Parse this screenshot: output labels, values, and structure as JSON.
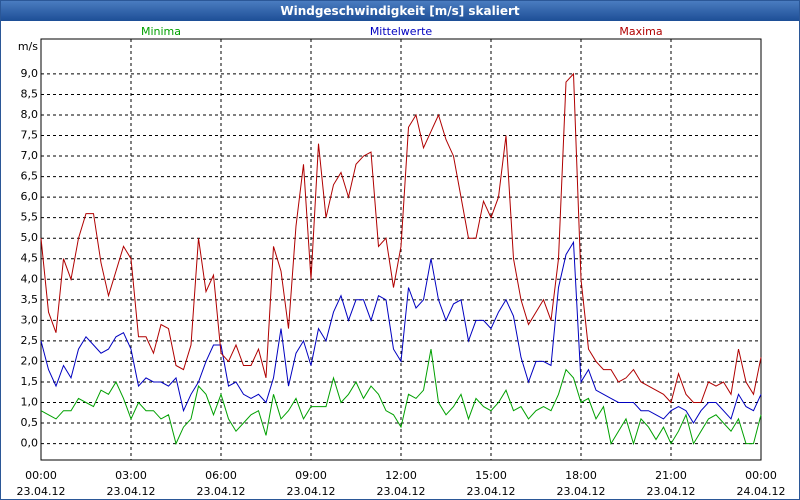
{
  "chart_data": {
    "type": "line",
    "title": "Windgeschwindigkeit [m/s] skaliert",
    "ylabel": "m/s",
    "x": [
      0,
      0.25,
      0.5,
      0.75,
      1,
      1.25,
      1.5,
      1.75,
      2,
      2.25,
      2.5,
      2.75,
      3,
      3.25,
      3.5,
      3.75,
      4,
      4.25,
      4.5,
      4.75,
      5,
      5.25,
      5.5,
      5.75,
      6,
      6.25,
      6.5,
      6.75,
      7,
      7.25,
      7.5,
      7.75,
      8,
      8.25,
      8.5,
      8.75,
      9,
      9.25,
      9.5,
      9.75,
      10,
      10.25,
      10.5,
      10.75,
      11,
      11.25,
      11.5,
      11.75,
      12,
      12.25,
      12.5,
      12.75,
      13,
      13.25,
      13.5,
      13.75,
      14,
      14.25,
      14.5,
      14.75,
      15,
      15.25,
      15.5,
      15.75,
      16,
      16.25,
      16.5,
      16.75,
      17,
      17.25,
      17.5,
      17.75,
      18,
      18.25,
      18.5,
      18.75,
      19,
      19.25,
      19.5,
      19.75,
      20,
      20.25,
      20.5,
      20.75,
      21,
      21.25,
      21.5,
      21.75,
      22,
      22.25,
      22.5,
      22.75,
      23,
      23.25,
      23.5,
      23.75,
      24
    ],
    "series": [
      {
        "name": "Minima",
        "color": "#00a000",
        "values": [
          0.8,
          0.7,
          0.6,
          0.8,
          0.8,
          1.1,
          1.0,
          0.9,
          1.3,
          1.2,
          1.5,
          1.1,
          0.6,
          1.0,
          0.8,
          0.8,
          0.6,
          0.7,
          0.0,
          0.4,
          0.6,
          1.4,
          1.2,
          0.7,
          1.2,
          0.6,
          0.3,
          0.5,
          0.7,
          0.8,
          0.2,
          1.2,
          0.6,
          0.8,
          1.1,
          0.6,
          0.9,
          0.9,
          0.9,
          1.6,
          1.0,
          1.2,
          1.5,
          1.1,
          1.4,
          1.2,
          0.8,
          0.7,
          0.4,
          1.2,
          1.1,
          1.3,
          2.3,
          1.0,
          0.7,
          0.9,
          1.2,
          0.6,
          1.1,
          0.9,
          0.8,
          1.0,
          1.3,
          0.8,
          0.9,
          0.6,
          0.8,
          0.9,
          0.8,
          1.2,
          1.8,
          1.6,
          1.0,
          1.1,
          0.6,
          0.9,
          0.0,
          0.3,
          0.6,
          0.0,
          0.6,
          0.4,
          0.1,
          0.4,
          0.0,
          0.3,
          0.7,
          0.0,
          0.3,
          0.6,
          0.7,
          0.5,
          0.3,
          0.6,
          0.0,
          0.0,
          0.7
        ]
      },
      {
        "name": "Mittelwerte",
        "color": "#0000c0",
        "values": [
          2.5,
          1.8,
          1.4,
          1.9,
          1.6,
          2.3,
          2.6,
          2.4,
          2.2,
          2.3,
          2.6,
          2.7,
          2.3,
          1.4,
          1.6,
          1.5,
          1.5,
          1.4,
          1.6,
          0.8,
          1.2,
          1.5,
          2.0,
          2.4,
          2.4,
          1.4,
          1.5,
          1.2,
          1.1,
          1.2,
          1.0,
          1.6,
          2.8,
          1.4,
          2.2,
          2.5,
          1.9,
          2.8,
          2.5,
          3.2,
          3.6,
          3.0,
          3.5,
          3.5,
          3.0,
          3.6,
          3.5,
          2.3,
          2.0,
          3.8,
          3.3,
          3.5,
          4.5,
          3.5,
          3.0,
          3.4,
          3.5,
          2.5,
          3.0,
          3.0,
          2.8,
          3.2,
          3.5,
          3.1,
          2.1,
          1.5,
          2.0,
          2.0,
          1.9,
          3.8,
          4.6,
          4.9,
          1.5,
          1.8,
          1.3,
          1.2,
          1.1,
          1.0,
          1.0,
          1.0,
          0.8,
          0.8,
          0.7,
          0.6,
          0.8,
          0.9,
          0.8,
          0.5,
          0.8,
          1.0,
          1.0,
          0.8,
          0.6,
          1.2,
          0.9,
          0.8,
          1.2
        ]
      },
      {
        "name": "Maxima",
        "color": "#b00000",
        "values": [
          5.0,
          3.2,
          2.7,
          4.5,
          4.0,
          5.0,
          5.6,
          5.6,
          4.4,
          3.6,
          4.2,
          4.8,
          4.5,
          2.6,
          2.6,
          2.2,
          2.9,
          2.8,
          1.9,
          1.8,
          2.4,
          5.0,
          3.7,
          4.1,
          2.2,
          2.0,
          2.4,
          1.9,
          1.9,
          2.3,
          1.6,
          4.8,
          4.2,
          2.8,
          5.3,
          6.8,
          4.0,
          7.3,
          5.5,
          6.3,
          6.6,
          6.0,
          6.8,
          7.0,
          7.1,
          4.8,
          5.0,
          3.8,
          4.8,
          7.7,
          8.0,
          7.2,
          7.6,
          8.0,
          7.4,
          7.0,
          6.0,
          5.0,
          5.0,
          5.9,
          5.5,
          6.0,
          7.5,
          4.5,
          3.5,
          2.9,
          3.2,
          3.5,
          3.0,
          4.5,
          8.8,
          9.0,
          4.0,
          2.3,
          2.0,
          1.8,
          1.8,
          1.5,
          1.6,
          1.8,
          1.5,
          1.4,
          1.3,
          1.2,
          1.0,
          1.7,
          1.2,
          1.0,
          1.0,
          1.5,
          1.4,
          1.5,
          1.2,
          2.3,
          1.5,
          1.2,
          2.1
        ]
      }
    ],
    "xlim": [
      0,
      24
    ],
    "xticks": [
      {
        "value": 0,
        "label": "00:00"
      },
      {
        "value": 3,
        "label": "03:00"
      },
      {
        "value": 6,
        "label": "06:00"
      },
      {
        "value": 9,
        "label": "09:00"
      },
      {
        "value": 12,
        "label": "12:00"
      },
      {
        "value": 15,
        "label": "15:00"
      },
      {
        "value": 18,
        "label": "18:00"
      },
      {
        "value": 21,
        "label": "21:00"
      },
      {
        "value": 24,
        "label": "00:00"
      }
    ],
    "xtick_dates": [
      "23.04.12",
      "23.04.12",
      "23.04.12",
      "23.04.12",
      "23.04.12",
      "23.04.12",
      "23.04.12",
      "23.04.12",
      "24.04.12"
    ],
    "ylim": [
      -0.4,
      9.85
    ],
    "yticks": [
      {
        "value": 0,
        "label": "0,0"
      },
      {
        "value": 0.5,
        "label": "0,5"
      },
      {
        "value": 1,
        "label": "1,0"
      },
      {
        "value": 1.5,
        "label": "1,5"
      },
      {
        "value": 2,
        "label": "2,0"
      },
      {
        "value": 2.5,
        "label": "2,5"
      },
      {
        "value": 3,
        "label": "3,0"
      },
      {
        "value": 3.5,
        "label": "3,5"
      },
      {
        "value": 4,
        "label": "4,0"
      },
      {
        "value": 4.5,
        "label": "4,5"
      },
      {
        "value": 5,
        "label": "5,0"
      },
      {
        "value": 5.5,
        "label": "5,5"
      },
      {
        "value": 6,
        "label": "6,0"
      },
      {
        "value": 6.5,
        "label": "6,5"
      },
      {
        "value": 7,
        "label": "7,0"
      },
      {
        "value": 7.5,
        "label": "7,5"
      },
      {
        "value": 8,
        "label": "8,0"
      },
      {
        "value": 8.5,
        "label": "8,5"
      },
      {
        "value": 9,
        "label": "9,0"
      }
    ],
    "grid": true
  }
}
